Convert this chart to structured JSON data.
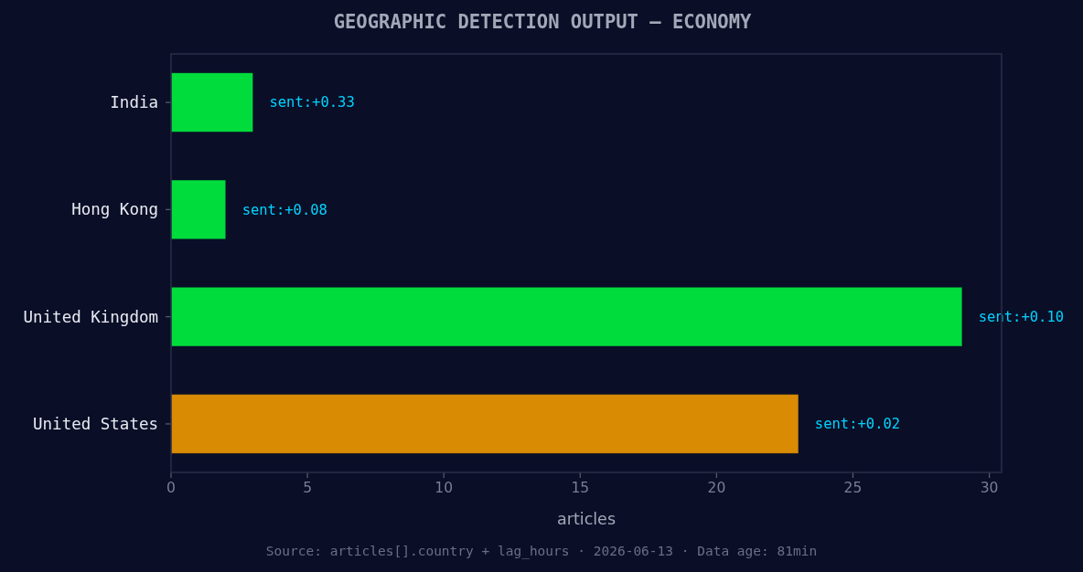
{
  "chart_data": {
    "type": "bar",
    "orientation": "horizontal",
    "title": "GEOGRAPHIC DETECTION OUTPUT — ECONOMY",
    "xlabel": "articles",
    "categories": [
      "India",
      "Hong Kong",
      "United Kingdom",
      "United States"
    ],
    "values": [
      3,
      2,
      29,
      23
    ],
    "colors": [
      "#00dc3c",
      "#00dc3c",
      "#00dc3c",
      "#d98b04"
    ],
    "xlim": [
      0,
      30.45
    ],
    "xticks": [
      0,
      5,
      10,
      15,
      20,
      25,
      30
    ],
    "annotations": [
      {
        "text": "sent:+0.33",
        "x": 3,
        "y": "India"
      },
      {
        "text": "sent:+0.08",
        "x": 2,
        "y": "Hong Kong"
      },
      {
        "text": "sent:+0.10",
        "x": 29,
        "y": "United Kingdom"
      },
      {
        "text": "sent:+0.02",
        "x": 23,
        "y": "United States"
      },
      "Source: articles[].country + lag_hours · 2026-06-13 · Data age: 81min"
    ]
  }
}
